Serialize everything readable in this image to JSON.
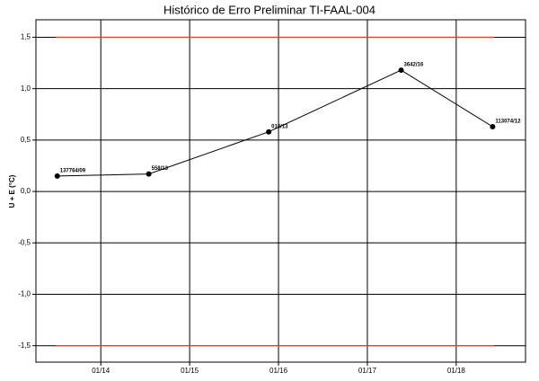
{
  "chart_data": {
    "type": "line",
    "title": "Histórico de Erro Preliminar TI-FAAL-004",
    "y_label": "U + E (°C)",
    "x": [
      2013.51,
      2014.54,
      2015.89,
      2017.38,
      2018.41
    ],
    "values": [
      0.15,
      0.17,
      0.58,
      1.18,
      0.63
    ],
    "point_labels": [
      "137764/09",
      "558/13",
      "010/13",
      "3642/16",
      "113074/12"
    ],
    "color": "#000000",
    "xlim": [
      2013.27,
      2018.78
    ],
    "xticks": [
      {
        "value": 2014,
        "label": "01/14"
      },
      {
        "value": 2015,
        "label": "01/15"
      },
      {
        "value": 2016,
        "label": "01/16"
      },
      {
        "value": 2017,
        "label": "01/17"
      },
      {
        "value": 2018,
        "label": "01/18"
      }
    ],
    "ylim": [
      -1.66,
      1.67
    ],
    "yticks": [
      {
        "value": 1.5,
        "label": "1,5"
      },
      {
        "value": 1.0,
        "label": "1,0"
      },
      {
        "value": 0.5,
        "label": "0,5"
      },
      {
        "value": 0.0,
        "label": "0,0"
      },
      {
        "value": -0.5,
        "label": "-0,5"
      },
      {
        "value": -1.0,
        "label": "-1,0"
      },
      {
        "value": -1.5,
        "label": "-1,5"
      }
    ],
    "limits": [
      {
        "value": 1.5,
        "color": "#e8432e"
      },
      {
        "value": -1.5,
        "color": "#e8432e"
      }
    ],
    "grid": true
  }
}
